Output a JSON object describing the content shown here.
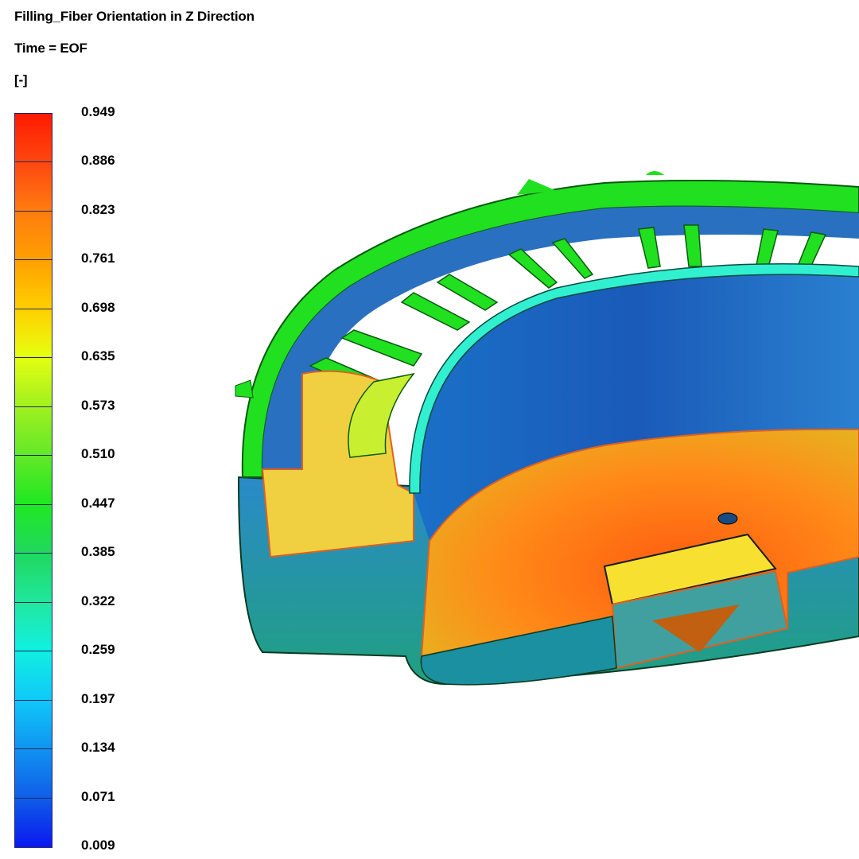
{
  "header": {
    "title": "Filling_Fiber Orientation in Z Direction",
    "time": "Time = EOF",
    "unit": "[-]"
  },
  "legend": {
    "labels": [
      "0.949",
      "0.886",
      "0.823",
      "0.761",
      "0.698",
      "0.635",
      "0.573",
      "0.510",
      "0.447",
      "0.385",
      "0.322",
      "0.259",
      "0.197",
      "0.134",
      "0.071",
      "0.009"
    ],
    "min": 0.009,
    "max": 0.949,
    "colormap": "rainbow blue-to-red"
  },
  "colors": {
    "high": "#ff1a00",
    "low": "#0a18f0",
    "mid": "#20e820"
  }
}
